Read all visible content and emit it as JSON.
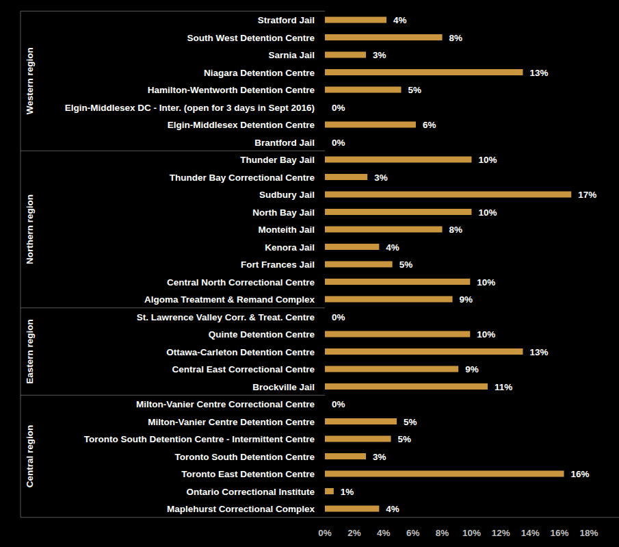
{
  "chart_data": {
    "type": "bar",
    "orientation": "horizontal",
    "color": "#c9963f",
    "data_labels": true,
    "grid": false,
    "xlim": [
      0,
      18
    ],
    "xticks": [
      {
        "value": 0,
        "label": "0%"
      },
      {
        "value": 2,
        "label": "2%"
      },
      {
        "value": 4,
        "label": "4%"
      },
      {
        "value": 6,
        "label": "6%"
      },
      {
        "value": 8,
        "label": "8%"
      },
      {
        "value": 10,
        "label": "10%"
      },
      {
        "value": 12,
        "label": "12%"
      },
      {
        "value": 14,
        "label": "14%"
      },
      {
        "value": 16,
        "label": "16%"
      },
      {
        "value": 18,
        "label": "18%"
      }
    ],
    "groups": [
      {
        "name": "Western region",
        "categories": [
          "Stratford Jail",
          "South West Detention Centre",
          "Sarnia Jail",
          "Niagara Detention Centre",
          "Hamilton-Wentworth Detention Centre",
          "Elgin-Middlesex DC - Inter. (open for 3 days in Sept 2016)",
          "Elgin-Middlesex Detention Centre",
          "Brantford Jail"
        ],
        "values": [
          4.2,
          8.0,
          2.8,
          13.5,
          5.2,
          0,
          6.2,
          0
        ],
        "value_labels": [
          "4%",
          "8%",
          "3%",
          "13%",
          "5%",
          "0%",
          "6%",
          "0%"
        ]
      },
      {
        "name": "Northern region",
        "categories": [
          "Thunder Bay Jail",
          "Thunder Bay Correctional Centre",
          "Sudbury Jail",
          "North Bay Jail",
          "Monteith Jail",
          "Kenora Jail",
          "Fort Frances Jail",
          "Central North Correctional Centre",
          "Algoma Treatment & Remand Complex"
        ],
        "values": [
          10.0,
          2.9,
          16.8,
          10.0,
          8.0,
          3.7,
          4.6,
          9.9,
          8.7
        ],
        "value_labels": [
          "10%",
          "3%",
          "17%",
          "10%",
          "8%",
          "4%",
          "5%",
          "10%",
          "9%"
        ]
      },
      {
        "name": "Eastern region",
        "categories": [
          "St. Lawrence Valley Corr. & Treat. Centre",
          "Quinte Detention Centre",
          "Ottawa-Carleton Detention Centre",
          "Central East Correctional Centre",
          "Brockville Jail"
        ],
        "values": [
          0,
          9.9,
          13.5,
          9.1,
          11.1
        ],
        "value_labels": [
          "0%",
          "10%",
          "13%",
          "9%",
          "11%"
        ]
      },
      {
        "name": "Central region",
        "categories": [
          "Milton-Vanier Centre Correctional Centre",
          "Milton-Vanier Centre Detention Centre",
          "Toronto South Detention Centre - Intermittent Centre",
          "Toronto South Detention Centre",
          "Toronto East Detention Centre",
          "Ontario Correctional Institute",
          "Maplehurst Correctional Complex"
        ],
        "values": [
          0,
          4.9,
          4.5,
          2.8,
          16.3,
          0.6,
          3.7
        ],
        "value_labels": [
          "0%",
          "5%",
          "5%",
          "3%",
          "16%",
          "1%",
          "4%"
        ]
      }
    ]
  }
}
